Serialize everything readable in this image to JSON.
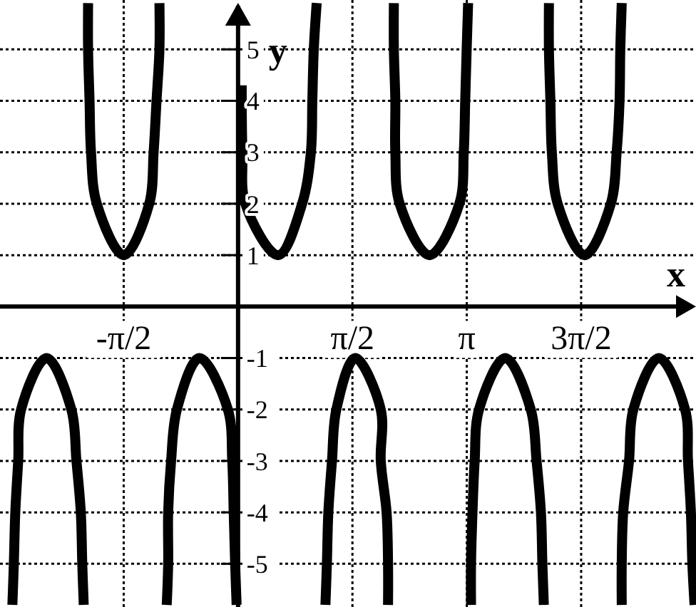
{
  "chart_data": {
    "type": "line",
    "xlabel": "x",
    "ylabel": "y",
    "xlim": [
      -3.27,
      6.29
    ],
    "ylim": [
      -5.84,
      5.96
    ],
    "xticks": [
      {
        "value": -1.5708,
        "label": "-π/2"
      },
      {
        "value": 1.5708,
        "label": "π/2"
      },
      {
        "value": 3.1416,
        "label": "π"
      },
      {
        "value": 4.7124,
        "label": "3π/2"
      }
    ],
    "yticks": [
      -5,
      -4,
      -3,
      -2,
      -1,
      1,
      2,
      3,
      4,
      5
    ],
    "grid": true,
    "marker": "none",
    "line_style": "solid",
    "series": [
      {
        "color": "#000000",
        "x": [
          -2.06,
          -2.06,
          -2.04,
          -2.02,
          -1.94,
          -1.57,
          -1.22,
          -1.16,
          -1.12,
          -1.08,
          -1.08
        ],
        "values": [
          5.9,
          5,
          4,
          3,
          2,
          1,
          2,
          3,
          4,
          5,
          5.9
        ]
      },
      {
        "color": "#000000",
        "x": [
          0.05,
          0.06,
          0.1,
          0.55,
          0.88,
          1.0,
          1.02,
          1.04,
          1.08
        ],
        "values": [
          4.3,
          3,
          2,
          1,
          2,
          3,
          4,
          5,
          5.9
        ]
      },
      {
        "color": "#000000",
        "x": [
          2.14,
          2.14,
          2.16,
          2.16,
          2.22,
          2.63,
          3.04,
          3.1,
          3.12,
          3.14,
          3.16
        ],
        "values": [
          5.9,
          5,
          4,
          3,
          2,
          1,
          2,
          3,
          4,
          5,
          5.9
        ]
      },
      {
        "color": "#000000",
        "x": [
          4.27,
          4.27,
          4.29,
          4.31,
          4.39,
          4.76,
          5.12,
          5.2,
          5.24,
          5.25,
          5.27
        ],
        "values": [
          5.9,
          5,
          4,
          3,
          2,
          1,
          2,
          3,
          4,
          5,
          5.9
        ]
      },
      {
        "color": "#000000",
        "x": [
          -3.1,
          -3.08,
          -3.06,
          -3.02,
          -2.98,
          -2.63,
          -2.29,
          -2.22,
          -2.16,
          -2.14,
          -2.12
        ],
        "values": [
          -5.8,
          -5,
          -4,
          -3,
          -2,
          -1,
          -2,
          -3,
          -4,
          -5,
          -5.8
        ]
      },
      {
        "color": "#000000",
        "x": [
          -0.98,
          -0.96,
          -0.96,
          -0.92,
          -0.84,
          -0.53,
          -0.14,
          -0.08,
          -0.06,
          -0.04,
          -0.02
        ],
        "values": [
          -5.8,
          -5,
          -4,
          -3,
          -2,
          -1,
          -2,
          -3,
          -4,
          -5,
          -5.8
        ]
      },
      {
        "color": "#000000",
        "x": [
          1.2,
          1.22,
          1.24,
          1.29,
          1.35,
          1.61,
          1.96,
          1.96,
          2.04,
          2.06,
          2.06
        ],
        "values": [
          -5.8,
          -5,
          -4,
          -3,
          -2,
          -1,
          -2,
          -3,
          -4,
          -5,
          -5.8
        ]
      },
      {
        "color": "#000000",
        "x": [
          3.2,
          3.2,
          3.22,
          3.25,
          3.31,
          3.67,
          4.02,
          4.1,
          4.16,
          4.18,
          4.2
        ],
        "values": [
          -5.8,
          -5,
          -4,
          -3,
          -2,
          -1,
          -2,
          -3,
          -4,
          -5,
          -5.8
        ]
      },
      {
        "color": "#000000",
        "x": [
          5.27,
          5.27,
          5.29,
          5.37,
          5.43,
          5.78,
          6.14,
          6.18,
          6.22,
          6.24,
          6.27
        ],
        "values": [
          -5.8,
          -5,
          -4,
          -3,
          -2,
          -1,
          -2,
          -3,
          -4,
          -5,
          -5.8
        ]
      }
    ]
  }
}
